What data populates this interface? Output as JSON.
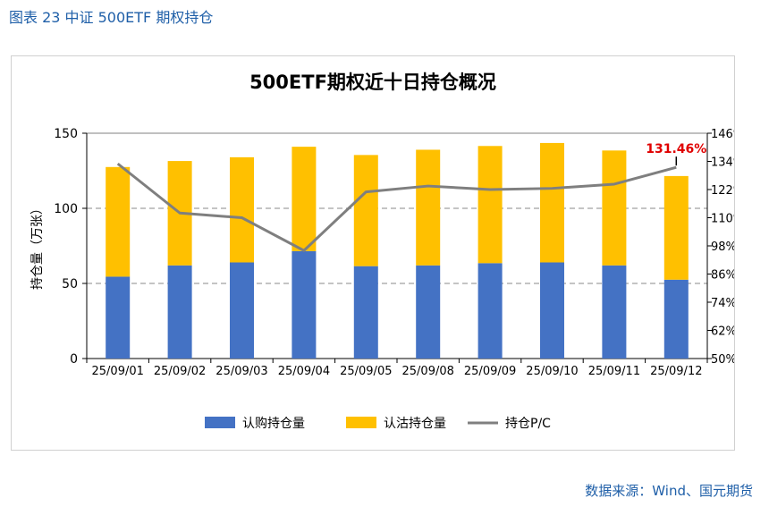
{
  "caption": "图表 23  中证 500ETF 期权持仓",
  "source": "数据来源：Wind、国元期货",
  "colors": {
    "call": "#4472C4",
    "put": "#FFC000",
    "pc": "#7F7F7F",
    "highlight": "#E00000",
    "grid": "#A0A0A0"
  },
  "chart_data": {
    "type": "bar",
    "title": "500ETF期权近十日持仓概况",
    "ylabel": "持仓量（万张）",
    "categories": [
      "25/09/01",
      "25/09/02",
      "25/09/03",
      "25/09/04",
      "25/09/05",
      "25/09/08",
      "25/09/09",
      "25/09/10",
      "25/09/11",
      "25/09/12"
    ],
    "ylim": [
      0,
      150
    ],
    "yticks": [
      "0",
      "50",
      "100",
      "150"
    ],
    "y2lim": [
      0.5,
      1.46
    ],
    "y2ticks": [
      "50%",
      "62%",
      "74%",
      "86%",
      "98%",
      "110%",
      "122%",
      "134%",
      "146%"
    ],
    "grid": "dashed horizontal at 50 and 100",
    "legend_position": "bottom",
    "stacked": true,
    "series": [
      {
        "name": "认购持仓量",
        "type": "bar",
        "axis": "left",
        "values": [
          54.5,
          62.0,
          64.0,
          71.5,
          61.5,
          62.0,
          63.5,
          64.0,
          62.0,
          52.5
        ]
      },
      {
        "name": "认沽持仓量",
        "type": "bar",
        "axis": "left",
        "values": [
          73.0,
          69.5,
          70.0,
          69.5,
          74.0,
          77.0,
          78.0,
          79.5,
          76.5,
          69.0
        ]
      },
      {
        "name": "持仓P/C",
        "type": "line",
        "axis": "right",
        "values": [
          1.33,
          1.12,
          1.1,
          0.96,
          1.21,
          1.235,
          1.22,
          1.225,
          1.243,
          1.3146
        ]
      }
    ],
    "annotation": {
      "index": 9,
      "text": "131.46%"
    }
  }
}
